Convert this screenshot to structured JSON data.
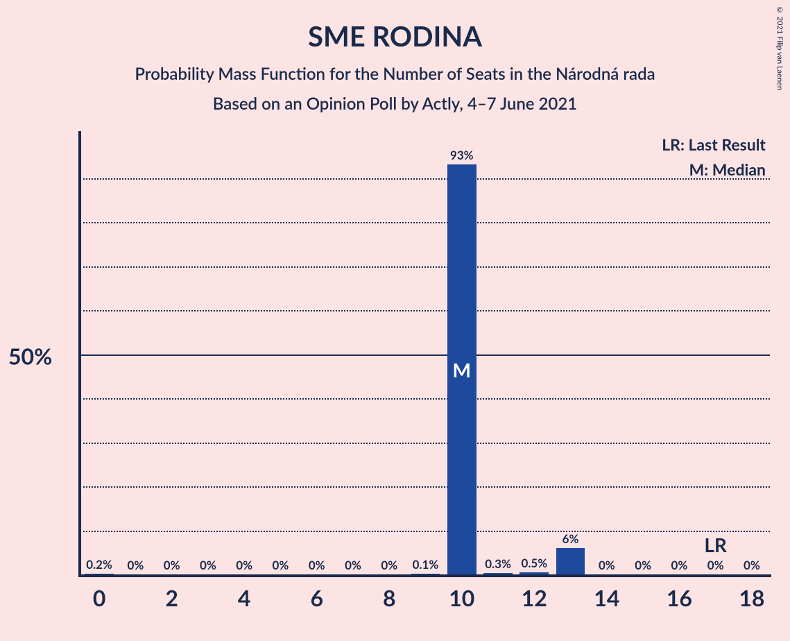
{
  "copyright": "© 2021 Filip van Laenen",
  "title": "SME RODINA",
  "subtitle1": "Probability Mass Function for the Number of Seats in the Národná rada",
  "subtitle2": "Based on an Opinion Poll by Actly, 4–7 June 2021",
  "legend": {
    "lr": "LR: Last Result",
    "m": "M: Median"
  },
  "chart": {
    "type": "bar",
    "ylabel": "50%",
    "ylim": [
      0,
      100
    ],
    "xlim": [
      0,
      18
    ],
    "grid_step": 10,
    "solid_grid_at": 50,
    "background_color": "#fce4e4",
    "text_color": "#1a2a4a",
    "bar_color": "#1e4a9e",
    "grid_color": "#1a2a4a",
    "bar_width_ratio": 0.8,
    "title_fontsize": 40,
    "subtitle_fontsize": 24,
    "axis_label_fontsize": 32,
    "tick_fontsize": 32,
    "barlabel_fontsize": 17,
    "median_seat": 10,
    "last_result_seat": 17,
    "xticks": [
      0,
      2,
      4,
      6,
      8,
      10,
      12,
      14,
      16,
      18
    ],
    "bars": [
      {
        "x": 0,
        "value": 0.2,
        "label": "0.2%"
      },
      {
        "x": 1,
        "value": 0,
        "label": "0%"
      },
      {
        "x": 2,
        "value": 0,
        "label": "0%"
      },
      {
        "x": 3,
        "value": 0,
        "label": "0%"
      },
      {
        "x": 4,
        "value": 0,
        "label": "0%"
      },
      {
        "x": 5,
        "value": 0,
        "label": "0%"
      },
      {
        "x": 6,
        "value": 0,
        "label": "0%"
      },
      {
        "x": 7,
        "value": 0,
        "label": "0%"
      },
      {
        "x": 8,
        "value": 0,
        "label": "0%"
      },
      {
        "x": 9,
        "value": 0.1,
        "label": "0.1%"
      },
      {
        "x": 10,
        "value": 93,
        "label": "93%"
      },
      {
        "x": 11,
        "value": 0.3,
        "label": "0.3%"
      },
      {
        "x": 12,
        "value": 0.5,
        "label": "0.5%"
      },
      {
        "x": 13,
        "value": 6,
        "label": "6%"
      },
      {
        "x": 14,
        "value": 0,
        "label": "0%"
      },
      {
        "x": 15,
        "value": 0,
        "label": "0%"
      },
      {
        "x": 16,
        "value": 0,
        "label": "0%"
      },
      {
        "x": 17,
        "value": 0,
        "label": "0%"
      },
      {
        "x": 18,
        "value": 0,
        "label": "0%"
      }
    ]
  }
}
